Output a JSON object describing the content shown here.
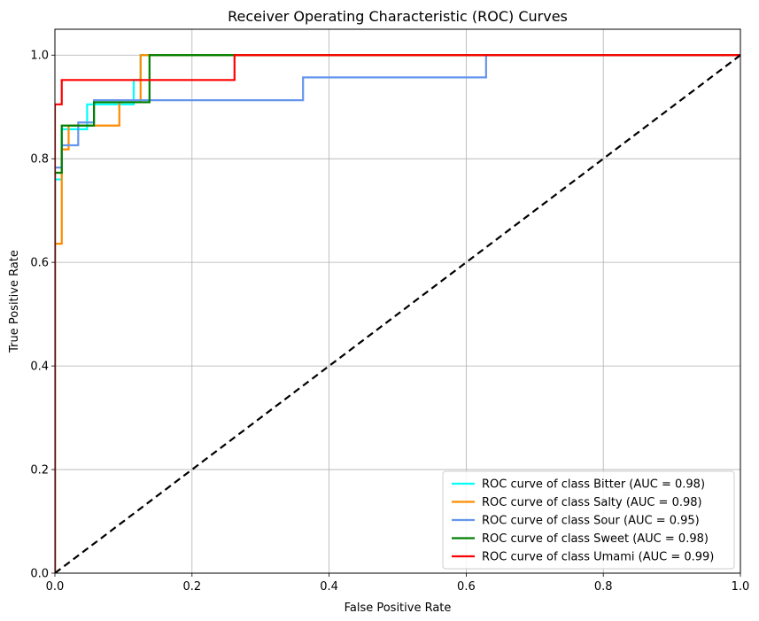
{
  "chart_data": {
    "type": "line",
    "title": "Receiver Operating Characteristic (ROC) Curves",
    "xlabel": "False Positive Rate",
    "ylabel": "True Positive Rate",
    "xlim": [
      0.0,
      1.0
    ],
    "ylim": [
      0.0,
      1.05
    ],
    "xticks": [
      "0.0",
      "0.2",
      "0.4",
      "0.6",
      "0.8",
      "1.0"
    ],
    "yticks": [
      "0.0",
      "0.2",
      "0.4",
      "0.6",
      "0.8",
      "1.0"
    ],
    "grid": true,
    "legend_position": "lower-right",
    "series": [
      {
        "name": "ROC curve of class Bitter (AUC = 0.98)",
        "color": "#00ffff",
        "x": [
          0.0,
          0.0,
          0.01,
          0.01,
          0.047,
          0.047,
          0.057,
          0.057,
          0.115,
          0.115,
          0.125,
          0.125,
          1.0
        ],
        "y": [
          0.0,
          0.76,
          0.76,
          0.857,
          0.857,
          0.905,
          0.905,
          0.905,
          0.905,
          0.952,
          0.952,
          1.0,
          1.0
        ]
      },
      {
        "name": "ROC curve of class Salty (AUC = 0.98)",
        "color": "#ff8c00",
        "x": [
          0.0,
          0.0,
          0.01,
          0.01,
          0.02,
          0.02,
          0.031,
          0.031,
          0.094,
          0.094,
          0.125,
          0.125,
          1.0
        ],
        "y": [
          0.0,
          0.636,
          0.636,
          0.818,
          0.818,
          0.864,
          0.864,
          0.864,
          0.864,
          0.909,
          0.909,
          1.0,
          1.0
        ]
      },
      {
        "name": "ROC curve of class Sour (AUC = 0.95)",
        "color": "#6495ed",
        "x": [
          0.0,
          0.0,
          0.01,
          0.01,
          0.034,
          0.034,
          0.057,
          0.057,
          0.362,
          0.362,
          0.629,
          0.629,
          1.0
        ],
        "y": [
          0.0,
          0.783,
          0.783,
          0.826,
          0.826,
          0.87,
          0.87,
          0.913,
          0.913,
          0.957,
          0.957,
          1.0,
          1.0
        ]
      },
      {
        "name": "ROC curve of class Sweet (AUC = 0.98)",
        "color": "#008000",
        "x": [
          0.0,
          0.0,
          0.01,
          0.01,
          0.057,
          0.057,
          0.138,
          0.138,
          1.0
        ],
        "y": [
          0.0,
          0.773,
          0.773,
          0.864,
          0.864,
          0.909,
          0.909,
          1.0,
          1.0
        ]
      },
      {
        "name": "ROC curve of class Umami (AUC = 0.99)",
        "color": "#ff0000",
        "x": [
          0.0,
          0.0,
          0.01,
          0.01,
          0.262,
          0.262,
          1.0
        ],
        "y": [
          0.0,
          0.905,
          0.905,
          0.952,
          0.952,
          1.0,
          1.0
        ]
      }
    ],
    "reference_line": {
      "color": "#000000",
      "dashed": true,
      "x": [
        0.0,
        1.0
      ],
      "y": [
        0.0,
        1.0
      ]
    }
  }
}
